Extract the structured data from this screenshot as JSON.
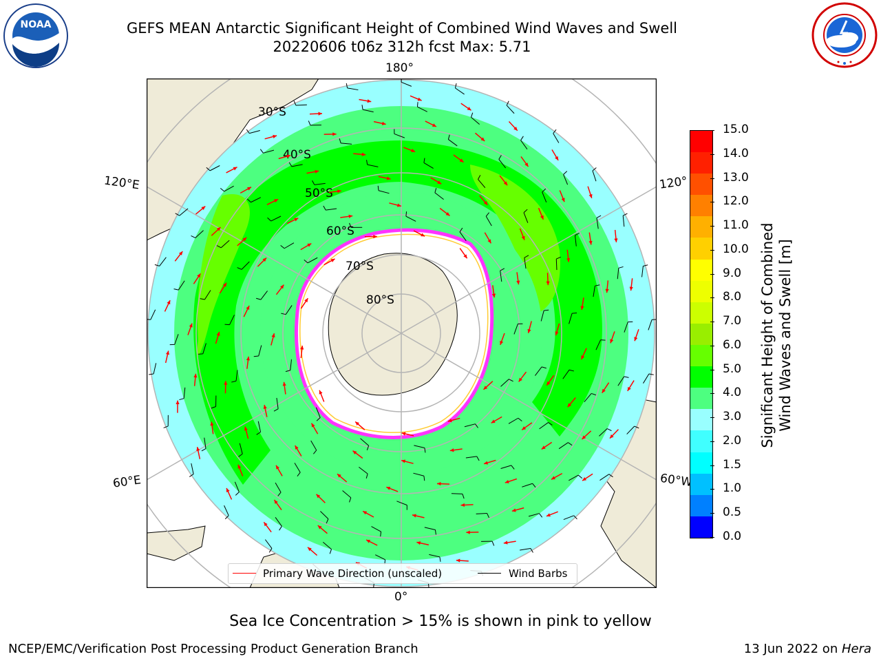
{
  "header": {
    "title_line1": "GEFS MEAN Antarctic Significant Height of Combined Wind Waves and Swell",
    "title_line2": "20220606 t06z 312h fcst   Max: 5.71"
  },
  "logos": {
    "left": {
      "name": "NOAA",
      "text": "NOAA",
      "ring_text": "NATIONAL OCEANIC AND ATMOSPHERIC ADMINISTRATION · U.S. DEPARTMENT OF COMMERCE"
    },
    "right": {
      "name": "National Weather Service",
      "ring_text": "NATIONAL WEATHER SERVICE"
    }
  },
  "map": {
    "projection": "south-polar-stereographic",
    "longitude_labels": {
      "top": "180°",
      "left_upper": "120°E",
      "right_upper": "120°",
      "left_lower": "60°E",
      "right_lower": "60°W",
      "bottom": "0°"
    },
    "latitude_labels": [
      "30°S",
      "40°S",
      "50°S",
      "60°S",
      "70°S",
      "80°S"
    ],
    "colors": {
      "land": "#efebd8",
      "ice_shelf": "#ffffff",
      "sea_ice_edge": [
        "#ff33ff",
        "#ff99cc",
        "#ffcc33"
      ],
      "grid": "#b4b4b4"
    }
  },
  "legend": {
    "items": [
      {
        "label": "Primary Wave Direction (unscaled)",
        "color": "#ff0000"
      },
      {
        "label": "Wind Barbs",
        "color": "#000000"
      }
    ]
  },
  "colorbar": {
    "label_line1": "Significant Height of Combined",
    "label_line2": "Wind Waves and Swell [m]",
    "ticks": [
      "0.0",
      "0.5",
      "1.0",
      "1.5",
      "2.0",
      "3.0",
      "4.0",
      "5.0",
      "6.0",
      "7.0",
      "8.0",
      "9.0",
      "10.0",
      "11.0",
      "12.0",
      "13.0",
      "14.0",
      "15.0"
    ],
    "colors": [
      "#0000ff",
      "#0080ff",
      "#00c0ff",
      "#00ffff",
      "#40ffff",
      "#99ffff",
      "#4dff80",
      "#00ff00",
      "#66ff00",
      "#99ee00",
      "#ccff00",
      "#eeff00",
      "#ffff00",
      "#ffd000",
      "#ffb000",
      "#ff8000",
      "#ff5000",
      "#ff2000",
      "#ff0000"
    ]
  },
  "notes": {
    "sea_ice": "Sea Ice Concentration > 15% is shown in pink to yellow"
  },
  "footer": {
    "left": "NCEP/EMC/Verification Post Processing Product Generation Branch",
    "right_prefix": "13 Jun 2022 on ",
    "right_machine": "Hera"
  }
}
